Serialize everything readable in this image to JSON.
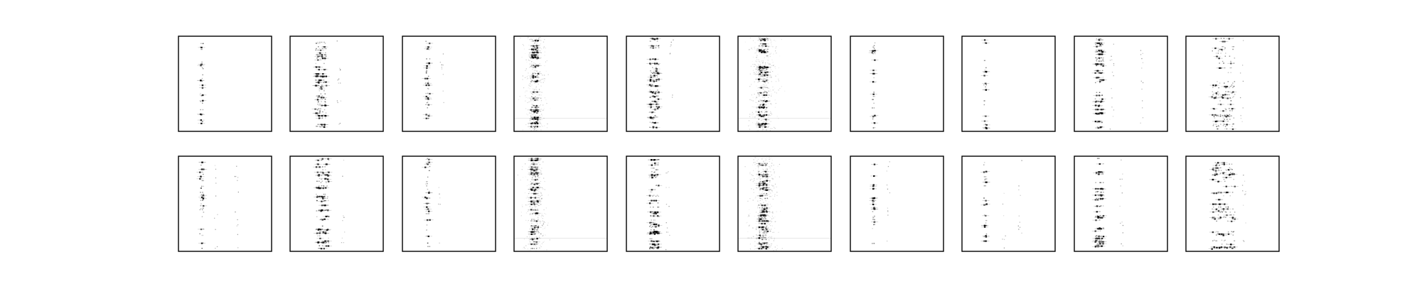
{
  "chart_data": {
    "type": "heatmap",
    "colormap": "gray_r",
    "title": "",
    "axes_visible": false,
    "legend": "none",
    "grid": false,
    "layout": {
      "rows": 2,
      "cols": 10
    },
    "panels": [
      {
        "row": 0,
        "col": 0,
        "pattern": "narrow",
        "center": 0.25,
        "width": 0.03,
        "density": 0.5,
        "noise": 0.0,
        "extra": []
      },
      {
        "row": 0,
        "col": 1,
        "pattern": "clustered",
        "center": 0.33,
        "width": 0.12,
        "density": 1.0,
        "noise": 0.0,
        "extra": [
          0.52
        ]
      },
      {
        "row": 0,
        "col": 2,
        "pattern": "narrow",
        "center": 0.27,
        "width": 0.05,
        "density": 0.6,
        "noise": 0.0,
        "extra": [
          0.42
        ]
      },
      {
        "row": 0,
        "col": 3,
        "pattern": "diffuse",
        "center": 0.22,
        "width": 0.08,
        "density": 0.9,
        "noise": 0.35,
        "extra": []
      },
      {
        "row": 0,
        "col": 4,
        "pattern": "clustered",
        "center": 0.3,
        "width": 0.1,
        "density": 0.9,
        "noise": 0.0,
        "extra": [
          0.48
        ]
      },
      {
        "row": 0,
        "col": 5,
        "pattern": "diffuse",
        "center": 0.27,
        "width": 0.1,
        "density": 1.0,
        "noise": 0.45,
        "extra": []
      },
      {
        "row": 0,
        "col": 6,
        "pattern": "narrow",
        "center": 0.25,
        "width": 0.03,
        "density": 0.55,
        "noise": 0.0,
        "extra": []
      },
      {
        "row": 0,
        "col": 7,
        "pattern": "narrow",
        "center": 0.25,
        "width": 0.03,
        "density": 0.35,
        "noise": 0.0,
        "extra": []
      },
      {
        "row": 0,
        "col": 8,
        "pattern": "clustered",
        "center": 0.27,
        "width": 0.09,
        "density": 0.8,
        "noise": 0.0,
        "extra": [
          0.4,
          0.72
        ]
      },
      {
        "row": 0,
        "col": 9,
        "pattern": "clustered",
        "center": 0.4,
        "width": 0.25,
        "density": 0.9,
        "noise": 0.0,
        "extra": [
          0.6
        ]
      },
      {
        "row": 1,
        "col": 0,
        "pattern": "narrow",
        "center": 0.25,
        "width": 0.04,
        "density": 0.6,
        "noise": 0.0,
        "extra": [
          0.4,
          0.62
        ]
      },
      {
        "row": 1,
        "col": 1,
        "pattern": "clustered",
        "center": 0.35,
        "width": 0.14,
        "density": 1.0,
        "noise": 0.0,
        "extra": [
          0.56
        ]
      },
      {
        "row": 1,
        "col": 2,
        "pattern": "narrow",
        "center": 0.27,
        "width": 0.05,
        "density": 0.65,
        "noise": 0.0,
        "extra": [
          0.4
        ]
      },
      {
        "row": 1,
        "col": 3,
        "pattern": "diffuse",
        "center": 0.22,
        "width": 0.08,
        "density": 0.9,
        "noise": 0.3,
        "extra": [
          0.3
        ]
      },
      {
        "row": 1,
        "col": 4,
        "pattern": "clustered",
        "center": 0.3,
        "width": 0.1,
        "density": 0.9,
        "noise": 0.0,
        "extra": [
          0.44
        ]
      },
      {
        "row": 1,
        "col": 5,
        "pattern": "diffuse",
        "center": 0.27,
        "width": 0.1,
        "density": 1.0,
        "noise": 0.45,
        "extra": []
      },
      {
        "row": 1,
        "col": 6,
        "pattern": "narrow",
        "center": 0.25,
        "width": 0.03,
        "density": 0.5,
        "noise": 0.0,
        "extra": [
          0.4
        ]
      },
      {
        "row": 1,
        "col": 7,
        "pattern": "narrow",
        "center": 0.25,
        "width": 0.03,
        "density": 0.35,
        "noise": 0.0,
        "extra": [
          0.45,
          0.62
        ]
      },
      {
        "row": 1,
        "col": 8,
        "pattern": "clustered",
        "center": 0.27,
        "width": 0.09,
        "density": 0.7,
        "noise": 0.0,
        "extra": [
          0.5
        ]
      },
      {
        "row": 1,
        "col": 9,
        "pattern": "clustered",
        "center": 0.4,
        "width": 0.25,
        "density": 0.9,
        "noise": 0.0,
        "extra": [
          0.62
        ]
      }
    ]
  }
}
